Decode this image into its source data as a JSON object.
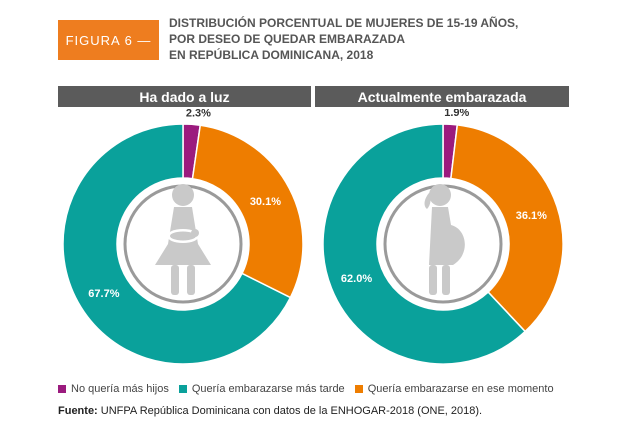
{
  "figure_label": "FIGURA 6 —",
  "title_lines": [
    "DISTRIBUCIÓN PORCENTUAL DE MUJERES DE 15-19 AÑOS,",
    "POR DESEO DE QUEDAR EMBARAZADA",
    "EN REPÚBLICA DOMINICANA, 2018"
  ],
  "colors": {
    "badge": "#ee7d1f",
    "header_bg": "#5b5b5b",
    "inner_circle": "#9a9a9a",
    "figure": "#c9c9c9"
  },
  "icons": {
    "left_center": "mother-holding-baby-icon",
    "right_center": "pregnant-woman-icon"
  },
  "chart_data": [
    {
      "type": "pie",
      "title": "Ha dado a luz",
      "categories": [
        "No quería más hijos",
        "Quería embarazarse más tarde",
        "Quería embarazarse en ese momento"
      ],
      "values": [
        2.3,
        67.7,
        30.1
      ],
      "labels": [
        "2.3%",
        "67.7%",
        "30.1%"
      ],
      "colors": [
        "#9b1b7e",
        "#0aa19b",
        "#ee7d00"
      ]
    },
    {
      "type": "pie",
      "title": "Actualmente embarazada",
      "categories": [
        "No quería más hijos",
        "Quería embarazarse más tarde",
        "Quería embarazarse en ese momento"
      ],
      "values": [
        1.9,
        62.0,
        36.1
      ],
      "labels": [
        "1.9%",
        "62.0%",
        "36.1%"
      ],
      "colors": [
        "#9b1b7e",
        "#0aa19b",
        "#ee7d00"
      ]
    }
  ],
  "legend": [
    {
      "label": "No quería más hijos",
      "color": "#9b1b7e"
    },
    {
      "label": "Quería embarazarse más tarde",
      "color": "#0aa19b"
    },
    {
      "label": "Quería embarazarse en ese momento",
      "color": "#ee7d00"
    }
  ],
  "source": {
    "prefix": "Fuente:",
    "text": "UNFPA República Dominicana con datos de la ENHOGAR-2018 (ONE, 2018)."
  }
}
